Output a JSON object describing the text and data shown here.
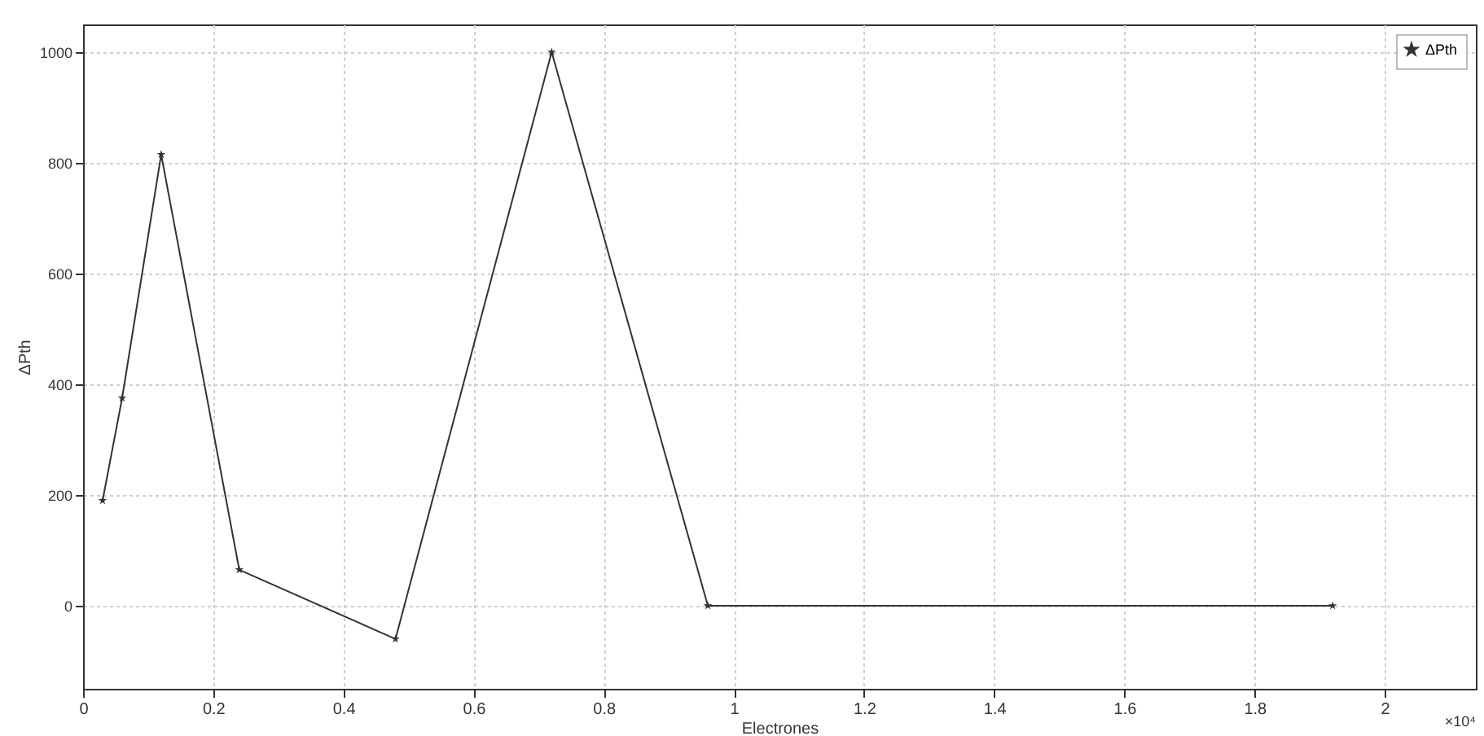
{
  "chart_data": {
    "type": "line",
    "xlabel": "Electrones",
    "ylabel": "ΔPth",
    "x": [
      0.03,
      0.06,
      0.12,
      0.24,
      0.48,
      0.72,
      0.96,
      1.92
    ],
    "series": [
      {
        "name": "ΔPth",
        "color": "#333333",
        "values": [
          190,
          375,
          815,
          65,
          -60,
          1000,
          0,
          0
        ]
      }
    ],
    "xlim": [
      0,
      2.14
    ],
    "xticks": [
      0,
      0.2,
      0.4,
      0.6,
      0.8,
      1,
      1.2,
      1.4,
      1.6,
      1.8,
      2
    ],
    "ylim": [
      -150,
      1050
    ],
    "yticks": [
      0,
      200,
      400,
      600,
      800,
      1000
    ],
    "annotations": [
      "×10⁴"
    ],
    "grid": true,
    "legend": "top right",
    "marker": "star",
    "line_style": "solid"
  }
}
